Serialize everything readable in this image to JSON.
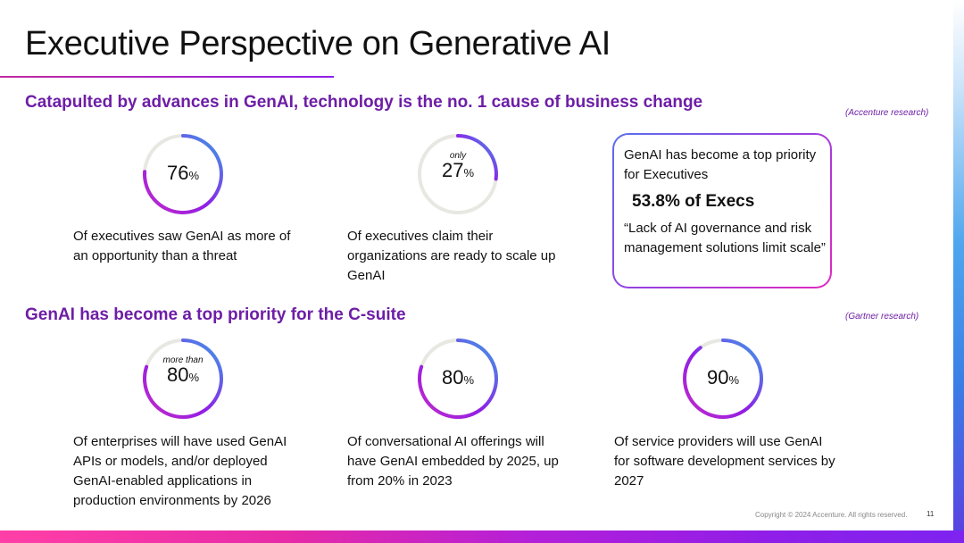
{
  "slide": {
    "title": "Executive Perspective on Generative AI",
    "page_number": "11",
    "copyright": "Copyright © 2024 Accenture. All rights reserved."
  },
  "colors": {
    "heading_purple": "#6e1ea6",
    "ring_track": "#e8e8e2",
    "gradient_blue": "#3aa0e8",
    "gradient_purple": "#8f1ee8",
    "gradient_magenta": "#c52ac8"
  },
  "section1": {
    "heading": "Catapulted by advances in GenAI, technology is the no. 1 cause of business change",
    "source": "(Accenture research)",
    "stats": [
      {
        "qualifier": "",
        "value": 76,
        "value_label": "76",
        "unit": "%",
        "description": "Of executives saw GenAI as more of an opportunity than a threat"
      },
      {
        "qualifier": "only",
        "value": 27,
        "value_label": "27",
        "unit": "%",
        "description": "Of executives claim their organizations are ready to scale up GenAI"
      }
    ],
    "callout": {
      "intro": "GenAI has become a top priority for Executives",
      "stat": "53.8% of Execs",
      "quote": "“Lack of AI governance and risk management solutions limit scale”"
    }
  },
  "section2": {
    "heading": "GenAI has become a top priority for the C-suite",
    "source": "(Gartner research)",
    "stats": [
      {
        "qualifier": "more than",
        "value": 80,
        "value_label": "80",
        "unit": "%",
        "description": "Of enterprises will have used GenAI APIs or models, and/or deployed GenAI-enabled applications in production environments by 2026"
      },
      {
        "qualifier": "",
        "value": 80,
        "value_label": "80",
        "unit": "%",
        "description": "Of conversational AI offerings will have GenAI embedded by 2025, up from 20% in 2023"
      },
      {
        "qualifier": "",
        "value": 90,
        "value_label": "90",
        "unit": "%",
        "description": "Of service providers will use GenAI for software development services by 2027"
      }
    ]
  }
}
